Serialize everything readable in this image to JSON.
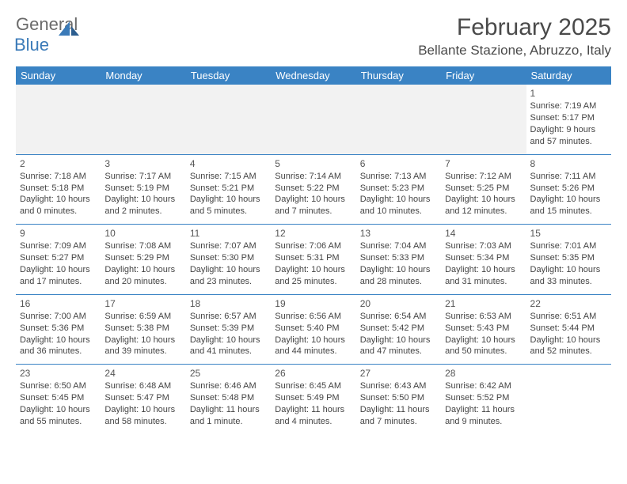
{
  "brand": {
    "part1": "General",
    "part2": "Blue"
  },
  "title": "February 2025",
  "location": "Bellante Stazione, Abruzzo, Italy",
  "colors": {
    "header_bg": "#3a83c4",
    "header_text": "#ffffff",
    "rule": "#3a83c4",
    "body_text": "#444444",
    "brand_gray": "#6a6a6a",
    "brand_blue": "#3a7ab8",
    "blank_bg": "#f2f2f2"
  },
  "fonts": {
    "body_pt": 11,
    "daynum_pt": 12,
    "header_pt": 13,
    "title_pt": 30,
    "location_pt": 17
  },
  "dayHeaders": [
    "Sunday",
    "Monday",
    "Tuesday",
    "Wednesday",
    "Thursday",
    "Friday",
    "Saturday"
  ],
  "weeks": [
    [
      null,
      null,
      null,
      null,
      null,
      null,
      {
        "n": "1",
        "sunrise": "Sunrise: 7:19 AM",
        "sunset": "Sunset: 5:17 PM",
        "day1": "Daylight: 9 hours",
        "day2": "and 57 minutes."
      }
    ],
    [
      {
        "n": "2",
        "sunrise": "Sunrise: 7:18 AM",
        "sunset": "Sunset: 5:18 PM",
        "day1": "Daylight: 10 hours",
        "day2": "and 0 minutes."
      },
      {
        "n": "3",
        "sunrise": "Sunrise: 7:17 AM",
        "sunset": "Sunset: 5:19 PM",
        "day1": "Daylight: 10 hours",
        "day2": "and 2 minutes."
      },
      {
        "n": "4",
        "sunrise": "Sunrise: 7:15 AM",
        "sunset": "Sunset: 5:21 PM",
        "day1": "Daylight: 10 hours",
        "day2": "and 5 minutes."
      },
      {
        "n": "5",
        "sunrise": "Sunrise: 7:14 AM",
        "sunset": "Sunset: 5:22 PM",
        "day1": "Daylight: 10 hours",
        "day2": "and 7 minutes."
      },
      {
        "n": "6",
        "sunrise": "Sunrise: 7:13 AM",
        "sunset": "Sunset: 5:23 PM",
        "day1": "Daylight: 10 hours",
        "day2": "and 10 minutes."
      },
      {
        "n": "7",
        "sunrise": "Sunrise: 7:12 AM",
        "sunset": "Sunset: 5:25 PM",
        "day1": "Daylight: 10 hours",
        "day2": "and 12 minutes."
      },
      {
        "n": "8",
        "sunrise": "Sunrise: 7:11 AM",
        "sunset": "Sunset: 5:26 PM",
        "day1": "Daylight: 10 hours",
        "day2": "and 15 minutes."
      }
    ],
    [
      {
        "n": "9",
        "sunrise": "Sunrise: 7:09 AM",
        "sunset": "Sunset: 5:27 PM",
        "day1": "Daylight: 10 hours",
        "day2": "and 17 minutes."
      },
      {
        "n": "10",
        "sunrise": "Sunrise: 7:08 AM",
        "sunset": "Sunset: 5:29 PM",
        "day1": "Daylight: 10 hours",
        "day2": "and 20 minutes."
      },
      {
        "n": "11",
        "sunrise": "Sunrise: 7:07 AM",
        "sunset": "Sunset: 5:30 PM",
        "day1": "Daylight: 10 hours",
        "day2": "and 23 minutes."
      },
      {
        "n": "12",
        "sunrise": "Sunrise: 7:06 AM",
        "sunset": "Sunset: 5:31 PM",
        "day1": "Daylight: 10 hours",
        "day2": "and 25 minutes."
      },
      {
        "n": "13",
        "sunrise": "Sunrise: 7:04 AM",
        "sunset": "Sunset: 5:33 PM",
        "day1": "Daylight: 10 hours",
        "day2": "and 28 minutes."
      },
      {
        "n": "14",
        "sunrise": "Sunrise: 7:03 AM",
        "sunset": "Sunset: 5:34 PM",
        "day1": "Daylight: 10 hours",
        "day2": "and 31 minutes."
      },
      {
        "n": "15",
        "sunrise": "Sunrise: 7:01 AM",
        "sunset": "Sunset: 5:35 PM",
        "day1": "Daylight: 10 hours",
        "day2": "and 33 minutes."
      }
    ],
    [
      {
        "n": "16",
        "sunrise": "Sunrise: 7:00 AM",
        "sunset": "Sunset: 5:36 PM",
        "day1": "Daylight: 10 hours",
        "day2": "and 36 minutes."
      },
      {
        "n": "17",
        "sunrise": "Sunrise: 6:59 AM",
        "sunset": "Sunset: 5:38 PM",
        "day1": "Daylight: 10 hours",
        "day2": "and 39 minutes."
      },
      {
        "n": "18",
        "sunrise": "Sunrise: 6:57 AM",
        "sunset": "Sunset: 5:39 PM",
        "day1": "Daylight: 10 hours",
        "day2": "and 41 minutes."
      },
      {
        "n": "19",
        "sunrise": "Sunrise: 6:56 AM",
        "sunset": "Sunset: 5:40 PM",
        "day1": "Daylight: 10 hours",
        "day2": "and 44 minutes."
      },
      {
        "n": "20",
        "sunrise": "Sunrise: 6:54 AM",
        "sunset": "Sunset: 5:42 PM",
        "day1": "Daylight: 10 hours",
        "day2": "and 47 minutes."
      },
      {
        "n": "21",
        "sunrise": "Sunrise: 6:53 AM",
        "sunset": "Sunset: 5:43 PM",
        "day1": "Daylight: 10 hours",
        "day2": "and 50 minutes."
      },
      {
        "n": "22",
        "sunrise": "Sunrise: 6:51 AM",
        "sunset": "Sunset: 5:44 PM",
        "day1": "Daylight: 10 hours",
        "day2": "and 52 minutes."
      }
    ],
    [
      {
        "n": "23",
        "sunrise": "Sunrise: 6:50 AM",
        "sunset": "Sunset: 5:45 PM",
        "day1": "Daylight: 10 hours",
        "day2": "and 55 minutes."
      },
      {
        "n": "24",
        "sunrise": "Sunrise: 6:48 AM",
        "sunset": "Sunset: 5:47 PM",
        "day1": "Daylight: 10 hours",
        "day2": "and 58 minutes."
      },
      {
        "n": "25",
        "sunrise": "Sunrise: 6:46 AM",
        "sunset": "Sunset: 5:48 PM",
        "day1": "Daylight: 11 hours",
        "day2": "and 1 minute."
      },
      {
        "n": "26",
        "sunrise": "Sunrise: 6:45 AM",
        "sunset": "Sunset: 5:49 PM",
        "day1": "Daylight: 11 hours",
        "day2": "and 4 minutes."
      },
      {
        "n": "27",
        "sunrise": "Sunrise: 6:43 AM",
        "sunset": "Sunset: 5:50 PM",
        "day1": "Daylight: 11 hours",
        "day2": "and 7 minutes."
      },
      {
        "n": "28",
        "sunrise": "Sunrise: 6:42 AM",
        "sunset": "Sunset: 5:52 PM",
        "day1": "Daylight: 11 hours",
        "day2": "and 9 minutes."
      },
      null
    ]
  ]
}
